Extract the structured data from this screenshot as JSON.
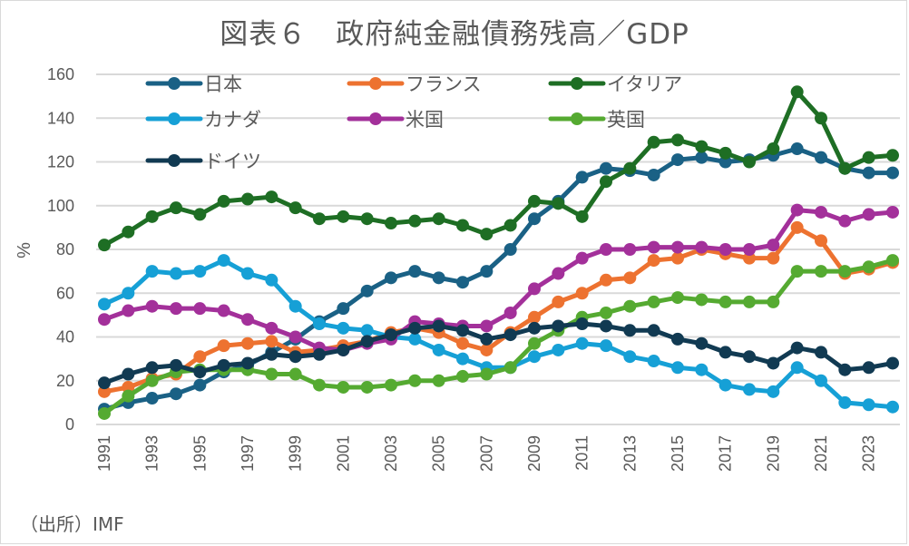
{
  "chart_data": {
    "type": "line",
    "title": "図表６　政府純金融債務残高／GDP",
    "xlabel": "",
    "ylabel": "%",
    "ylim": [
      0,
      160
    ],
    "yticks": [
      0,
      20,
      40,
      60,
      80,
      100,
      120,
      140,
      160
    ],
    "grid": true,
    "legend_position": "top-left",
    "x": [
      1991,
      1992,
      1993,
      1994,
      1995,
      1996,
      1997,
      1998,
      1999,
      2000,
      2001,
      2002,
      2003,
      2004,
      2005,
      2006,
      2007,
      2008,
      2009,
      2010,
      2011,
      2012,
      2013,
      2014,
      2015,
      2016,
      2017,
      2018,
      2019,
      2020,
      2021,
      2022,
      2023,
      2024
    ],
    "xtick_labels": [
      "1991",
      "1993",
      "1995",
      "1997",
      "1999",
      "2001",
      "2003",
      "2005",
      "2007",
      "2009",
      "2011",
      "2013",
      "2015",
      "2017",
      "2019",
      "2021",
      "2023"
    ],
    "series": [
      {
        "name": "日本",
        "color": "#1a6185",
        "values": [
          7,
          10,
          12,
          14,
          18,
          24,
          27,
          33,
          39,
          47,
          53,
          61,
          67,
          70,
          67,
          65,
          70,
          80,
          94,
          102,
          113,
          117,
          116,
          114,
          121,
          122,
          120,
          121,
          123,
          126,
          122,
          117,
          115,
          115
        ]
      },
      {
        "name": "フランス",
        "color": "#ed7230",
        "values": [
          15,
          17,
          21,
          23,
          31,
          36,
          37,
          38,
          33,
          34,
          36,
          38,
          42,
          44,
          42,
          37,
          34,
          42,
          49,
          56,
          60,
          66,
          67,
          75,
          76,
          80,
          78,
          76,
          76,
          90,
          84,
          69,
          71,
          74
        ]
      },
      {
        "name": "イタリア",
        "color": "#1e6e24",
        "values": [
          82,
          88,
          95,
          99,
          96,
          102,
          103,
          104,
          99,
          94,
          95,
          94,
          92,
          93,
          94,
          91,
          87,
          91,
          102,
          101,
          95,
          111,
          117,
          129,
          130,
          127,
          124,
          120,
          126,
          152,
          140,
          117,
          122,
          123
        ]
      },
      {
        "name": "カナダ",
        "color": "#16a0d6",
        "values": [
          55,
          60,
          70,
          69,
          70,
          75,
          69,
          66,
          54,
          46,
          44,
          43,
          40,
          39,
          34,
          30,
          26,
          26,
          31,
          34,
          37,
          36,
          31,
          29,
          26,
          25,
          18,
          16,
          15,
          26,
          20,
          10,
          9,
          8
        ]
      },
      {
        "name": "米国",
        "color": "#a3309a",
        "values": [
          48,
          52,
          54,
          53,
          53,
          52,
          48,
          44,
          40,
          35,
          34,
          37,
          39,
          47,
          46,
          45,
          45,
          51,
          62,
          69,
          76,
          80,
          80,
          81,
          81,
          81,
          80,
          80,
          82,
          98,
          97,
          93,
          96,
          97
        ]
      },
      {
        "name": "英国",
        "color": "#55aa31",
        "values": [
          5,
          13,
          20,
          24,
          25,
          25,
          25,
          23,
          23,
          18,
          17,
          17,
          18,
          20,
          20,
          22,
          23,
          26,
          37,
          43,
          49,
          51,
          54,
          56,
          58,
          57,
          56,
          56,
          56,
          70,
          70,
          70,
          72,
          75
        ]
      },
      {
        "name": "ドイツ",
        "color": "#113a52",
        "values": [
          19,
          23,
          26,
          27,
          24,
          27,
          28,
          32,
          31,
          32,
          34,
          38,
          41,
          44,
          45,
          43,
          39,
          41,
          44,
          45,
          46,
          45,
          43,
          43,
          39,
          37,
          33,
          31,
          28,
          35,
          33,
          25,
          26,
          28
        ]
      }
    ]
  },
  "header": {
    "title": "図表６　政府純金融債務残高／GDP"
  },
  "footer": {
    "source": "（出所）IMF"
  }
}
